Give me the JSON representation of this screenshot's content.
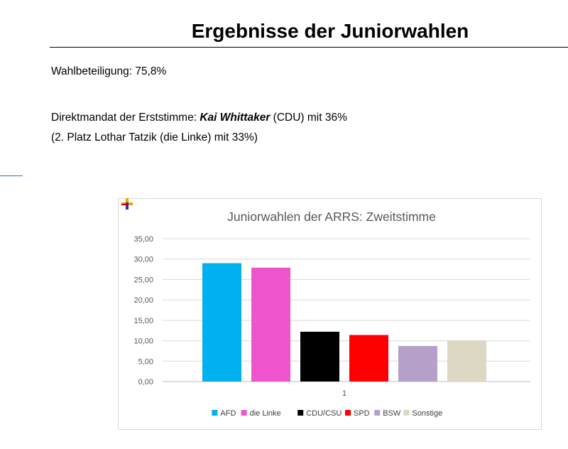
{
  "document": {
    "title": "Ergebnisse der Juniorwahlen",
    "turnout": "Wahlbeteiligung: 75,8%",
    "direct_mandate_prefix": "Direktmandat der Erststimme: ",
    "direct_mandate_candidate": "Kai Whittaker",
    "direct_mandate_suffix": " (CDU) mit 36%",
    "second_place": "(2. Platz Lothar Tatzik (die Linke) mit 33%)"
  },
  "chart_data": {
    "type": "bar",
    "title": "Juniorwahlen der ARRS: Zweitstimme",
    "xlabel": "",
    "ylabel": "",
    "categories": [
      "1"
    ],
    "ylim": [
      0,
      35
    ],
    "yticks": [
      "0,00",
      "5,00",
      "10,00",
      "15,00",
      "20,00",
      "25,00",
      "30,00",
      "35,00"
    ],
    "grid": true,
    "legend_position": "bottom",
    "series": [
      {
        "name": "AFD",
        "values": [
          29.0
        ],
        "color": "#00b0f0"
      },
      {
        "name": "die Linke",
        "values": [
          27.9
        ],
        "color": "#ee55cc"
      },
      {
        "name": "CDU/CSU",
        "values": [
          12.2
        ],
        "color": "#000000"
      },
      {
        "name": "SPD",
        "values": [
          11.4
        ],
        "color": "#ff0000"
      },
      {
        "name": "BSW",
        "values": [
          8.7
        ],
        "color": "#b4a0c8"
      },
      {
        "name": "Sonstige",
        "values": [
          10.1
        ],
        "color": "#ddd8c4"
      }
    ]
  }
}
